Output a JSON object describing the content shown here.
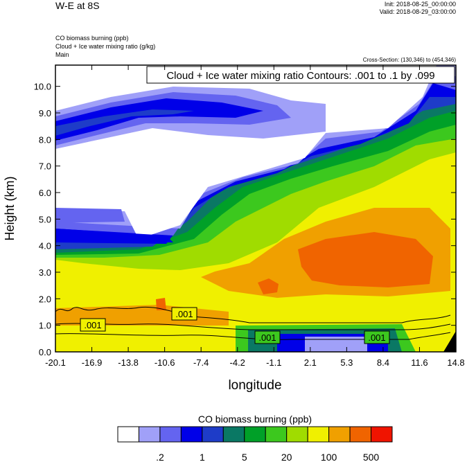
{
  "header": {
    "title": "W-E at 8S",
    "init": "Init: 2018-08-25_00:00:00",
    "valid": "Valid: 2018-08-29_03:00:00",
    "field1": "CO biomass burning   (ppb)",
    "field2": "Cloud + Ice water mixing ratio   (g/kg)",
    "field3": "Main",
    "cross_section": "Cross-Section: (130,346) to (454,346)"
  },
  "chart_data": {
    "type": "heatmap",
    "contour_title": "Cloud + Ice water mixing ratio Contours: .001 to .1 by .099",
    "xlabel": "longitude",
    "ylabel": "Height (km)",
    "xticks": [
      "-20.1",
      "-16.9",
      "-13.8",
      "-10.6",
      "-7.4",
      "-4.2",
      "-1.1",
      "2.1",
      "5.3",
      "8.4",
      "11.6",
      "14.8"
    ],
    "yticks": [
      "0.0",
      "1.0",
      "2.0",
      "3.0",
      "4.0",
      "5.0",
      "6.0",
      "7.0",
      "8.0",
      "9.0",
      "10.0"
    ],
    "ylim": [
      0,
      10.8
    ],
    "xlim": [
      -20.1,
      14.8
    ],
    "contour_labels": [
      ".001",
      ".001",
      ".001",
      ".001"
    ],
    "colorbar": {
      "title": "CO biomass burning  (ppb)",
      "labels": [
        ".2",
        "1",
        "5",
        "20",
        "100",
        "500"
      ],
      "colors": [
        "#ffffff",
        "#a0a0f8",
        "#6464f0",
        "#0000e8",
        "#1e3cc8",
        "#0a7864",
        "#00a028",
        "#3cc81e",
        "#a0dc00",
        "#f0f000",
        "#f0a000",
        "#f06400",
        "#f01400"
      ]
    }
  }
}
